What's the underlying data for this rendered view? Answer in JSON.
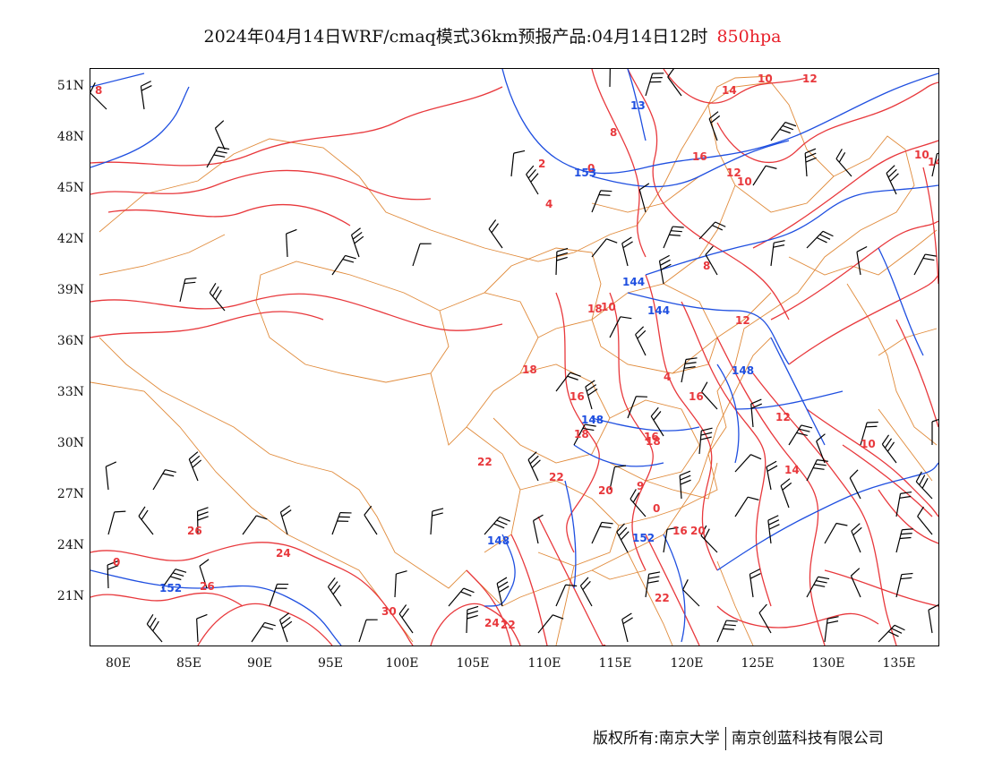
{
  "title": {
    "text": "2024年04月14日WRF/cmaq模式36km预报产品:04月14日12时",
    "level": "850hpa"
  },
  "map": {
    "lat_labels": [
      "51N",
      "48N",
      "45N",
      "42N",
      "39N",
      "36N",
      "33N",
      "30N",
      "27N",
      "24N",
      "21N"
    ],
    "lon_labels": [
      "80E",
      "85E",
      "90E",
      "95E",
      "100E",
      "105E",
      "110E",
      "115E",
      "120E",
      "125E",
      "130E",
      "135E"
    ],
    "colors": {
      "temperature_contour": "#e8383c",
      "height_contour": "#1f4fe0",
      "boundary": "#e08a3a",
      "wind_barb": "#000000"
    },
    "temperature_labels": [
      "8",
      "14",
      "10",
      "12",
      "12",
      "8",
      "2",
      "0",
      "16",
      "10",
      "14",
      "10",
      "4",
      "8",
      "12",
      "10",
      "18",
      "18",
      "4",
      "16",
      "16",
      "12",
      "10",
      "16",
      "18",
      "18",
      "14",
      "22",
      "22",
      "20",
      "9",
      "0",
      "20",
      "16",
      "26",
      "24",
      "26",
      "30",
      "22",
      "22",
      "24",
      "0"
    ],
    "height_labels": [
      "13",
      "153",
      "144",
      "144",
      "148",
      "148",
      "152",
      "148",
      "152"
    ]
  },
  "copyright": {
    "left": "版权所有:南京大学",
    "right": "南京创蓝科技有限公司"
  }
}
